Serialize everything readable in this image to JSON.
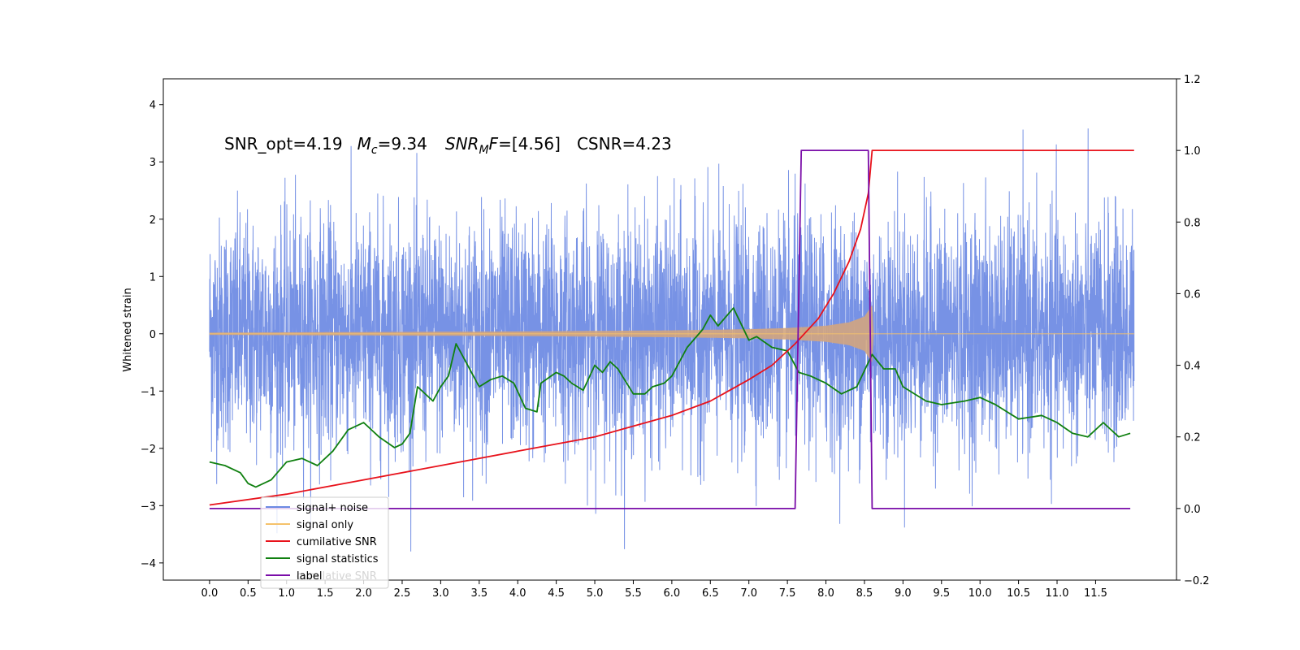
{
  "chart_data": {
    "type": "line",
    "annotation": {
      "snr_opt": "SNR_opt=4.19",
      "mc_sym": "M",
      "mc_sub": "c",
      "mc_val": "=9.34",
      "snrmf_sym": "SNR",
      "snrmf_sub": "M",
      "snrmf_tail": "F",
      "snrmf_val": "=[4.56]",
      "csnr": "CSNR=4.23"
    },
    "ylabel": "Whitened strain",
    "x_ticks": [
      "0.0",
      "0.5",
      "1.0",
      "1.5",
      "2.0",
      "2.5",
      "3.0",
      "3.5",
      "4.0",
      "4.5",
      "5.0",
      "5.5",
      "6.0",
      "6.5",
      "7.0",
      "7.5",
      "8.0",
      "8.5",
      "9.0",
      "9.5",
      "10.0",
      "10.5",
      "11.0",
      "11.5"
    ],
    "y_left_ticks": [
      "4",
      "3",
      "2",
      "1",
      "0",
      "−1",
      "−2",
      "−3",
      "−4"
    ],
    "y_right_ticks": [
      "1.2",
      "1.0",
      "0.8",
      "0.6",
      "0.4",
      "0.2",
      "0.0",
      "−0.2"
    ],
    "xlim": [
      -0.6,
      12.55
    ],
    "ylim_left": [
      -4.3,
      4.45
    ],
    "ylim_right": [
      -0.2,
      1.2
    ],
    "legend_position": "lower-left",
    "colors": {
      "signal_noise": "#6b89e3",
      "signal_only": "#f5c26b",
      "cumulative_snr": "#e8121b",
      "signal_statistics": "#108010",
      "label": "#7a0da8",
      "signal_band": "#d1a57f"
    },
    "series": [
      {
        "name": "signal+ noise",
        "x_range": [
          0.0,
          12.0
        ],
        "noise_std": 1.0,
        "description_axis": "left"
      },
      {
        "name": "signal only",
        "envelope": {
          "x": [
            0.0,
            2.0,
            4.0,
            6.0,
            7.0,
            7.5,
            8.0,
            8.3,
            8.5,
            8.6,
            8.61,
            12.0
          ],
          "amp": [
            0.02,
            0.03,
            0.04,
            0.06,
            0.08,
            0.1,
            0.14,
            0.2,
            0.3,
            0.5,
            0.0,
            0.0
          ]
        }
      },
      {
        "name": "cumilative SNR",
        "x": [
          0.0,
          1.0,
          2.0,
          3.0,
          4.0,
          5.0,
          6.0,
          6.5,
          7.0,
          7.3,
          7.6,
          7.9,
          8.1,
          8.3,
          8.45,
          8.55,
          8.6,
          12.0
        ],
        "y": [
          0.01,
          0.04,
          0.08,
          0.12,
          0.16,
          0.2,
          0.26,
          0.3,
          0.36,
          0.4,
          0.46,
          0.53,
          0.6,
          0.69,
          0.78,
          0.88,
          1.0,
          1.0
        ]
      },
      {
        "name": "signal statistics",
        "x": [
          0.0,
          0.2,
          0.4,
          0.5,
          0.6,
          0.8,
          1.0,
          1.2,
          1.4,
          1.6,
          1.8,
          2.0,
          2.2,
          2.4,
          2.5,
          2.6,
          2.7,
          2.9,
          3.0,
          3.1,
          3.2,
          3.35,
          3.5,
          3.65,
          3.8,
          3.95,
          4.1,
          4.25,
          4.3,
          4.5,
          4.6,
          4.7,
          4.85,
          5.0,
          5.1,
          5.2,
          5.3,
          5.5,
          5.65,
          5.75,
          5.9,
          6.0,
          6.2,
          6.4,
          6.5,
          6.6,
          6.8,
          7.0,
          7.1,
          7.3,
          7.5,
          7.65,
          7.8,
          8.0,
          8.2,
          8.4,
          8.6,
          8.75,
          8.9,
          9.0,
          9.3,
          9.5,
          9.8,
          10.0,
          10.2,
          10.5,
          10.8,
          11.0,
          11.2,
          11.4,
          11.6,
          11.8,
          11.95
        ],
        "y": [
          0.13,
          0.12,
          0.1,
          0.07,
          0.06,
          0.08,
          0.13,
          0.14,
          0.12,
          0.16,
          0.22,
          0.24,
          0.2,
          0.17,
          0.18,
          0.21,
          0.34,
          0.3,
          0.34,
          0.37,
          0.46,
          0.4,
          0.34,
          0.36,
          0.37,
          0.35,
          0.28,
          0.27,
          0.35,
          0.38,
          0.37,
          0.35,
          0.33,
          0.4,
          0.38,
          0.41,
          0.39,
          0.32,
          0.32,
          0.34,
          0.35,
          0.37,
          0.45,
          0.5,
          0.54,
          0.51,
          0.56,
          0.47,
          0.48,
          0.45,
          0.44,
          0.38,
          0.37,
          0.35,
          0.32,
          0.34,
          0.43,
          0.39,
          0.39,
          0.34,
          0.3,
          0.29,
          0.3,
          0.31,
          0.29,
          0.25,
          0.26,
          0.24,
          0.21,
          0.2,
          0.24,
          0.2,
          0.21
        ]
      },
      {
        "name": "label",
        "x": [
          0.0,
          7.6,
          7.68,
          8.55,
          8.6,
          11.95
        ],
        "y": [
          0.0,
          0.0,
          1.0,
          1.0,
          0.0,
          0.0
        ]
      }
    ],
    "legend_entries": [
      {
        "label": "signal+ noise",
        "key": "signal_noise"
      },
      {
        "label": "signal only",
        "key": "signal_only"
      },
      {
        "label": "cumilative SNR",
        "key": "cumulative_snr"
      },
      {
        "label": "signal statistics",
        "key": "signal_statistics"
      },
      {
        "label": "label",
        "key": "label"
      }
    ],
    "legend_ghost_text": "cumilative SNR"
  }
}
